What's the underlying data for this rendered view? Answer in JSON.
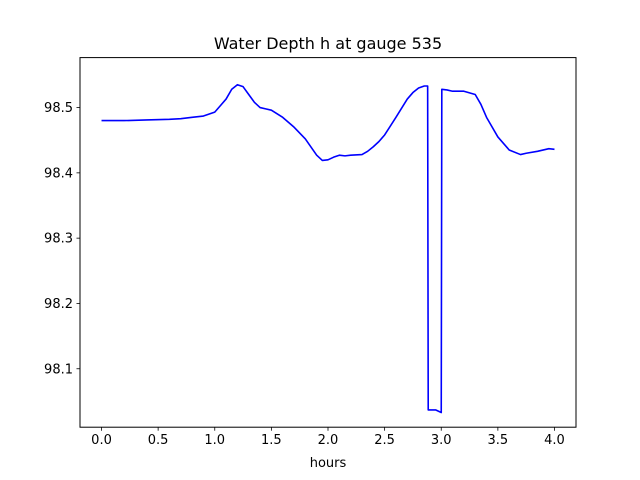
{
  "chart_data": {
    "type": "line",
    "title": "Water Depth h at gauge 535",
    "xlabel": "hours",
    "ylabel": "",
    "xlim": [
      -0.19,
      4.19
    ],
    "ylim": [
      98.0105,
      98.5765
    ],
    "xticks": [
      0.0,
      0.5,
      1.0,
      1.5,
      2.0,
      2.5,
      3.0,
      3.5,
      4.0
    ],
    "xtick_labels": [
      "0.0",
      "0.5",
      "1.0",
      "1.5",
      "2.0",
      "2.5",
      "3.0",
      "3.5",
      "4.0"
    ],
    "yticks": [
      98.1,
      98.2,
      98.3,
      98.4,
      98.5
    ],
    "ytick_labels": [
      "98.1",
      "98.2",
      "98.3",
      "98.4",
      "98.5"
    ],
    "grid": false,
    "legend": "none",
    "series": [
      {
        "color": "#0000ff",
        "x": [
          0.0,
          0.2,
          0.4,
          0.6,
          0.7,
          0.8,
          0.9,
          1.0,
          1.05,
          1.1,
          1.15,
          1.2,
          1.25,
          1.3,
          1.35,
          1.4,
          1.45,
          1.5,
          1.6,
          1.7,
          1.8,
          1.9,
          1.95,
          2.0,
          2.05,
          2.1,
          2.15,
          2.2,
          2.3,
          2.35,
          2.4,
          2.45,
          2.5,
          2.6,
          2.7,
          2.75,
          2.8,
          2.85,
          2.88,
          2.885,
          2.95,
          3.0,
          3.005,
          3.05,
          3.1,
          3.2,
          3.3,
          3.35,
          3.4,
          3.5,
          3.6,
          3.7,
          3.75,
          3.85,
          3.95,
          4.0
        ],
        "y": [
          98.48,
          98.48,
          98.481,
          98.482,
          98.483,
          98.485,
          98.487,
          98.493,
          98.503,
          98.513,
          98.528,
          98.535,
          98.532,
          98.52,
          98.508,
          98.5,
          98.498,
          98.496,
          98.485,
          98.47,
          98.452,
          98.427,
          98.419,
          98.42,
          98.424,
          98.427,
          98.426,
          98.427,
          98.428,
          98.433,
          98.44,
          98.448,
          98.458,
          98.485,
          98.513,
          98.523,
          98.53,
          98.533,
          98.533,
          98.037,
          98.037,
          98.033,
          98.528,
          98.527,
          98.525,
          98.525,
          98.52,
          98.505,
          98.485,
          98.455,
          98.435,
          98.428,
          98.43,
          98.433,
          98.437,
          98.436
        ]
      }
    ]
  }
}
